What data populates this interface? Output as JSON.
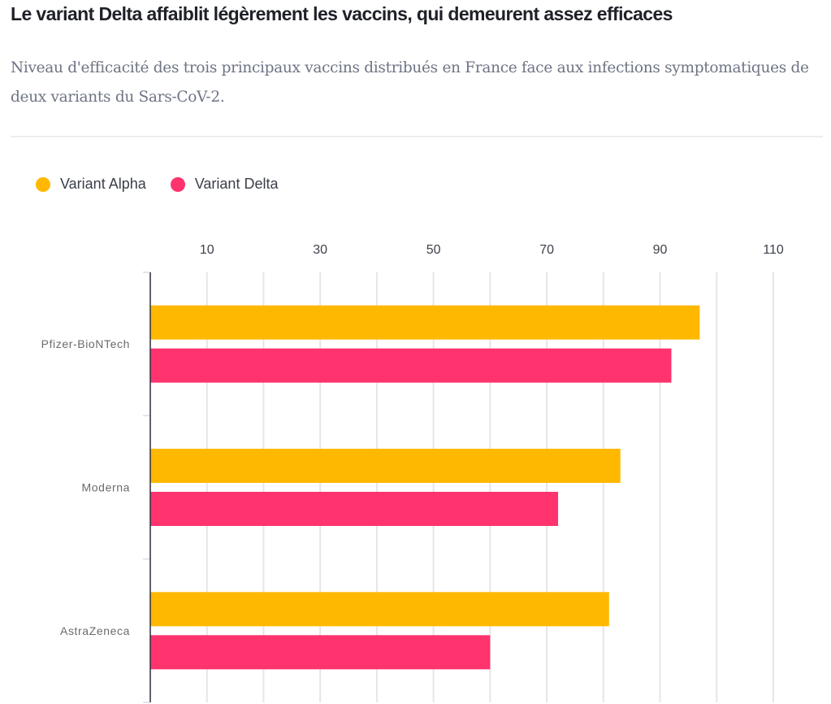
{
  "header": {
    "title": "Le variant Delta affaiblit légèrement les vaccins, qui demeurent assez efficaces",
    "subtitle": "Niveau d'efficacité des trois principaux vaccins distribués en France face aux infections symptomatiques de deux variants du Sars-CoV-2."
  },
  "chart_data": {
    "type": "bar",
    "orientation": "horizontal",
    "title": "Le variant Delta affaiblit légèrement les vaccins, qui demeurent assez efficaces",
    "subtitle": "Niveau d'efficacité des trois principaux vaccins distribués en France face aux infections symptomatiques de deux variants du Sars-CoV-2.",
    "categories": [
      "Pfizer-BioNTech",
      "Moderna",
      "AstraZeneca"
    ],
    "series": [
      {
        "name": "Variant Alpha",
        "color": "#FFB800",
        "values": [
          97,
          83,
          81
        ]
      },
      {
        "name": "Variant Delta",
        "color": "#FF336E",
        "values": [
          92,
          72,
          60
        ]
      }
    ],
    "xlim": [
      0,
      110
    ],
    "xticks": [
      10,
      30,
      50,
      70,
      90,
      110
    ],
    "tick_labels": [
      "10",
      "30",
      "50",
      "70",
      "90",
      "110"
    ],
    "gridlines": [
      10,
      20,
      30,
      40,
      50,
      60,
      70,
      80,
      90,
      100,
      110
    ],
    "grid": true,
    "axis_position": "top",
    "legend_position": "top-left",
    "xlabel": "",
    "ylabel": ""
  }
}
